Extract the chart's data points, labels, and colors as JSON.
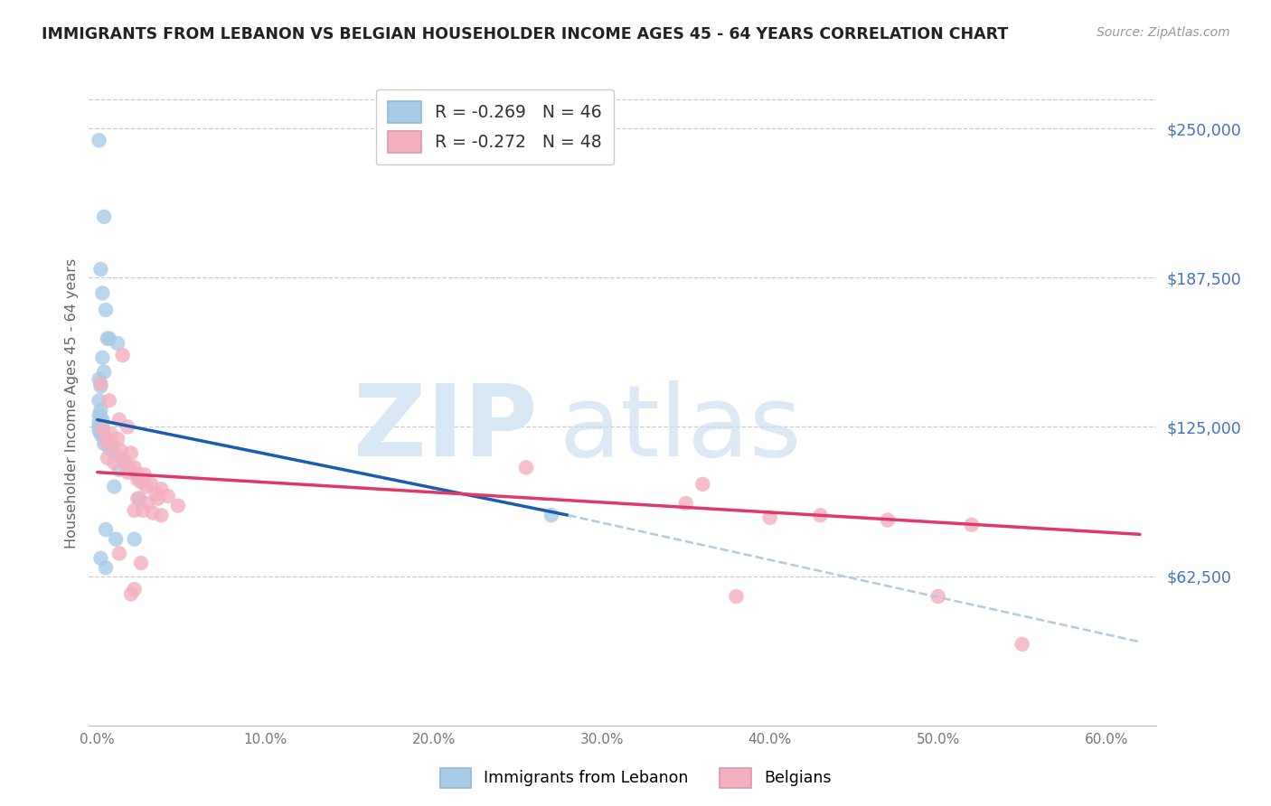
{
  "title": "IMMIGRANTS FROM LEBANON VS BELGIAN HOUSEHOLDER INCOME AGES 45 - 64 YEARS CORRELATION CHART",
  "source": "Source: ZipAtlas.com",
  "ylabel": "Householder Income Ages 45 - 64 years",
  "ytick_labels": [
    "$62,500",
    "$125,000",
    "$187,500",
    "$250,000"
  ],
  "ytick_vals": [
    62500,
    125000,
    187500,
    250000
  ],
  "ylim": [
    0,
    270000
  ],
  "xlim": [
    -0.005,
    0.63
  ],
  "xlabel_ticks": [
    "0.0%",
    "10.0%",
    "20.0%",
    "30.0%",
    "40.0%",
    "50.0%",
    "60.0%"
  ],
  "xlabel_vals": [
    0.0,
    0.1,
    0.2,
    0.3,
    0.4,
    0.5,
    0.6
  ],
  "legend1_label": "R = -0.269   N = 46",
  "legend2_label": "R = -0.272   N = 48",
  "blue_color": "#a8cce8",
  "pink_color": "#f5b0c0",
  "blue_line_color": "#1a5cb0",
  "pink_line_color": "#e03868",
  "blue_dashed_color": "#b0cce0",
  "blue_line_x0": 0.0,
  "blue_line_y0": 128000,
  "blue_line_x1": 0.28,
  "blue_line_y1": 88000,
  "blue_line_solid_end": 0.28,
  "blue_line_dash_x1": 0.62,
  "blue_line_dash_y1": 35000,
  "pink_line_x0": 0.0,
  "pink_line_y0": 106000,
  "pink_line_x1": 0.62,
  "pink_line_y1": 80000,
  "blue_dots": [
    [
      0.001,
      245000
    ],
    [
      0.004,
      213000
    ],
    [
      0.002,
      191000
    ],
    [
      0.003,
      181000
    ],
    [
      0.005,
      174000
    ],
    [
      0.007,
      162000
    ],
    [
      0.012,
      160000
    ],
    [
      0.003,
      154000
    ],
    [
      0.004,
      148000
    ],
    [
      0.001,
      145000
    ],
    [
      0.006,
      162000
    ],
    [
      0.002,
      142000
    ],
    [
      0.001,
      136000
    ],
    [
      0.002,
      132000
    ],
    [
      0.001,
      130000
    ],
    [
      0.002,
      129000
    ],
    [
      0.003,
      128000
    ],
    [
      0.001,
      127000
    ],
    [
      0.002,
      126500
    ],
    [
      0.003,
      126000
    ],
    [
      0.002,
      125500
    ],
    [
      0.001,
      125000
    ],
    [
      0.003,
      124500
    ],
    [
      0.002,
      124000
    ],
    [
      0.001,
      123500
    ],
    [
      0.003,
      123000
    ],
    [
      0.002,
      122000
    ],
    [
      0.004,
      121500
    ],
    [
      0.003,
      121000
    ],
    [
      0.005,
      120000
    ],
    [
      0.006,
      119000
    ],
    [
      0.004,
      118000
    ],
    [
      0.007,
      116000
    ],
    [
      0.009,
      115000
    ],
    [
      0.012,
      113000
    ],
    [
      0.016,
      110000
    ],
    [
      0.013,
      107000
    ],
    [
      0.024,
      105000
    ],
    [
      0.01,
      100000
    ],
    [
      0.005,
      82000
    ],
    [
      0.011,
      78000
    ],
    [
      0.002,
      70000
    ],
    [
      0.005,
      66000
    ],
    [
      0.025,
      95000
    ],
    [
      0.022,
      78000
    ],
    [
      0.27,
      88000
    ]
  ],
  "pink_dots": [
    [
      0.015,
      155000
    ],
    [
      0.002,
      143000
    ],
    [
      0.007,
      136000
    ],
    [
      0.013,
      128000
    ],
    [
      0.018,
      125000
    ],
    [
      0.003,
      124000
    ],
    [
      0.008,
      122000
    ],
    [
      0.012,
      120000
    ],
    [
      0.005,
      119000
    ],
    [
      0.009,
      117000
    ],
    [
      0.014,
      115000
    ],
    [
      0.02,
      114000
    ],
    [
      0.006,
      112000
    ],
    [
      0.016,
      111000
    ],
    [
      0.01,
      110000
    ],
    [
      0.022,
      108000
    ],
    [
      0.018,
      106000
    ],
    [
      0.028,
      105000
    ],
    [
      0.024,
      103000
    ],
    [
      0.026,
      102000
    ],
    [
      0.032,
      101000
    ],
    [
      0.029,
      100000
    ],
    [
      0.038,
      99000
    ],
    [
      0.035,
      97000
    ],
    [
      0.042,
      96000
    ],
    [
      0.036,
      95000
    ],
    [
      0.019,
      108000
    ],
    [
      0.024,
      95000
    ],
    [
      0.03,
      93000
    ],
    [
      0.048,
      92000
    ],
    [
      0.022,
      90000
    ],
    [
      0.027,
      90000
    ],
    [
      0.033,
      89000
    ],
    [
      0.038,
      88000
    ],
    [
      0.255,
      108000
    ],
    [
      0.36,
      101000
    ],
    [
      0.013,
      72000
    ],
    [
      0.026,
      68000
    ],
    [
      0.022,
      57000
    ],
    [
      0.02,
      55000
    ],
    [
      0.35,
      93000
    ],
    [
      0.4,
      87000
    ],
    [
      0.43,
      88000
    ],
    [
      0.47,
      86000
    ],
    [
      0.52,
      84000
    ],
    [
      0.55,
      34000
    ],
    [
      0.5,
      54000
    ],
    [
      0.38,
      54000
    ]
  ]
}
